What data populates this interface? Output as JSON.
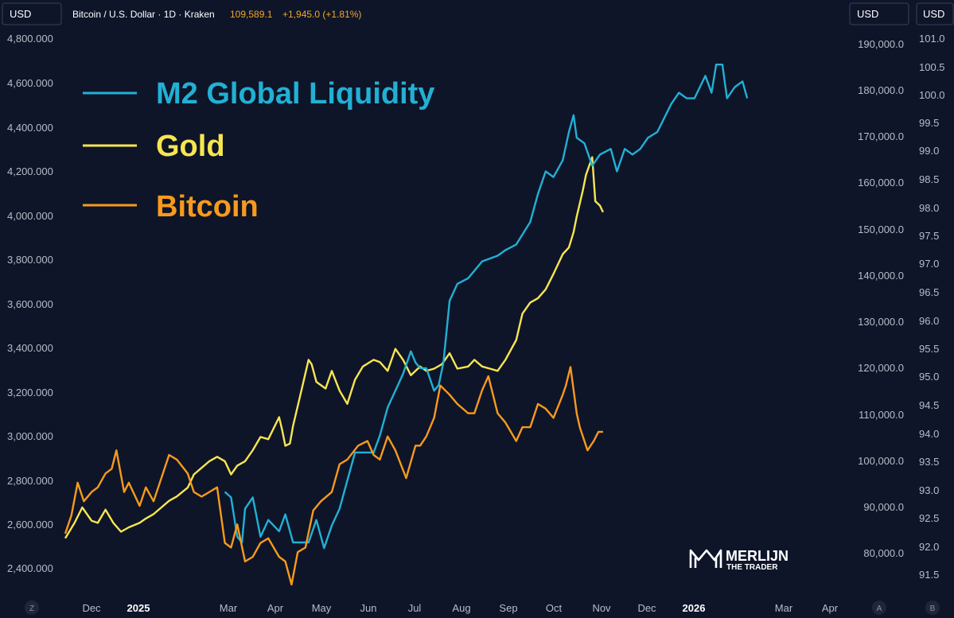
{
  "header": {
    "badge_left": "USD",
    "badge_right_1": "USD",
    "badge_right_2": "USD",
    "symbol_title": "Bitcoin / U.S. Dollar · 1D · Kraken",
    "price": "109,589.1",
    "change": "+1,945.0 (+1.81%)"
  },
  "watermark": {
    "line1": "MERLIJN",
    "line2": "THE TRADER"
  },
  "corner_buttons": {
    "left": "Z",
    "right_1": "A",
    "right_2": "B"
  },
  "colors": {
    "background": "#0e1529",
    "m2": "#22b0d4",
    "gold": "#f8e650",
    "bitcoin": "#f89a1c",
    "header_price": "#f5a623"
  },
  "chart_data": {
    "type": "line",
    "title": "Bitcoin / U.S. Dollar · 1D · Kraken",
    "legend": [
      "M2 Global Liquidity",
      "Gold",
      "Bitcoin"
    ],
    "x_tick_labels": [
      "Dec",
      "2025",
      "Mar",
      "Apr",
      "May",
      "Jun",
      "Jul",
      "Aug",
      "Sep",
      "Oct",
      "Nov",
      "Dec",
      "2026",
      "Mar",
      "Apr"
    ],
    "axes": {
      "gold_axis": {
        "side": "left",
        "ticks": [
          "4,800.000",
          "4,600.000",
          "4,400.000",
          "4,200.000",
          "4,000.000",
          "3,800.000",
          "3,600.000",
          "3,400.000",
          "3,200.000",
          "3,000.000",
          "2,800.000",
          "2,600.000",
          "2,400.000"
        ],
        "range": [
          2360,
          4840
        ]
      },
      "bitcoin_axis": {
        "side": "right-inner",
        "ticks": [
          "190,000.0",
          "180,000.0",
          "170,000.0",
          "160,000.0",
          "150,000.0",
          "140,000.0",
          "130,000.0",
          "120,000.0",
          "110,000.0",
          "100,000.0",
          "90,000.0",
          "80,000.0"
        ],
        "range": [
          77000,
          195000
        ]
      },
      "m2_axis": {
        "side": "right-outer",
        "ticks": [
          "101.0",
          "100.5",
          "100.0",
          "99.5",
          "99.0",
          "98.5",
          "98.0",
          "97.5",
          "97.0",
          "96.5",
          "96.0",
          "95.5",
          "95.0",
          "94.5",
          "94.0",
          "93.5",
          "93.0",
          "92.5",
          "92.0",
          "91.5"
        ],
        "range": [
          91.35,
          101.07
        ]
      }
    },
    "series": [
      {
        "name": "M2 Global Liquidity",
        "axis": "m2_axis",
        "x": [
          "2025-02-25",
          "2025-03-01",
          "2025-03-05",
          "2025-03-08",
          "2025-03-10",
          "2025-03-15",
          "2025-03-20",
          "2025-03-25",
          "2025-04-01",
          "2025-04-05",
          "2025-04-10",
          "2025-04-15",
          "2025-04-20",
          "2025-04-25",
          "2025-04-30",
          "2025-05-05",
          "2025-05-10",
          "2025-05-15",
          "2025-05-20",
          "2025-05-25",
          "2025-06-01",
          "2025-06-05",
          "2025-06-10",
          "2025-06-15",
          "2025-06-20",
          "2025-06-25",
          "2025-06-28",
          "2025-07-01",
          "2025-07-05",
          "2025-07-10",
          "2025-07-13",
          "2025-07-16",
          "2025-07-20",
          "2025-07-25",
          "2025-08-01",
          "2025-08-10",
          "2025-08-20",
          "2025-08-25",
          "2025-09-01",
          "2025-09-10",
          "2025-09-15",
          "2025-09-20",
          "2025-09-25",
          "2025-10-01",
          "2025-10-05",
          "2025-10-08",
          "2025-10-10",
          "2025-10-15",
          "2025-10-20",
          "2025-10-25",
          "2025-11-01",
          "2025-11-05",
          "2025-11-10",
          "2025-11-15",
          "2025-11-20",
          "2025-11-25",
          "2025-12-01",
          "2025-12-10",
          "2025-12-15",
          "2025-12-20",
          "2025-12-25",
          "2026-01-01",
          "2026-01-05",
          "2026-01-08",
          "2026-01-12",
          "2026-01-15",
          "2026-01-20",
          "2026-01-25",
          "2026-01-28"
        ],
        "values": [
          93.0,
          92.9,
          92.2,
          92.1,
          92.7,
          92.9,
          92.2,
          92.5,
          92.3,
          92.6,
          92.1,
          92.1,
          92.1,
          92.5,
          92.0,
          92.4,
          92.7,
          93.2,
          93.7,
          93.7,
          93.7,
          94.0,
          94.5,
          94.8,
          95.1,
          95.5,
          95.3,
          95.2,
          95.2,
          94.8,
          94.9,
          95.3,
          96.4,
          96.7,
          96.8,
          97.1,
          97.2,
          97.3,
          97.4,
          97.8,
          98.3,
          98.7,
          98.6,
          98.9,
          99.4,
          99.7,
          99.3,
          99.2,
          98.8,
          99.0,
          99.1,
          98.7,
          99.1,
          99.0,
          99.1,
          99.3,
          99.4,
          99.9,
          100.1,
          100.0,
          100.0,
          100.4,
          100.1,
          100.6,
          100.6,
          100.0,
          100.2,
          100.3,
          100.0
        ]
      },
      {
        "name": "Gold",
        "axis": "gold_axis",
        "x": [
          "2024-11-14",
          "2024-11-20",
          "2024-11-25",
          "2024-12-01",
          "2024-12-05",
          "2024-12-10",
          "2024-12-15",
          "2024-12-20",
          "2024-12-25",
          "2025-01-01",
          "2025-01-05",
          "2025-01-10",
          "2025-01-15",
          "2025-01-20",
          "2025-01-25",
          "2025-02-01",
          "2025-02-05",
          "2025-02-10",
          "2025-02-15",
          "2025-02-20",
          "2025-02-25",
          "2025-03-01",
          "2025-03-05",
          "2025-03-10",
          "2025-03-15",
          "2025-03-20",
          "2025-03-25",
          "2025-04-01",
          "2025-04-03",
          "2025-04-05",
          "2025-04-08",
          "2025-04-10",
          "2025-04-15",
          "2025-04-20",
          "2025-04-22",
          "2025-04-25",
          "2025-05-01",
          "2025-05-05",
          "2025-05-10",
          "2025-05-15",
          "2025-05-20",
          "2025-05-25",
          "2025-06-01",
          "2025-06-05",
          "2025-06-10",
          "2025-06-15",
          "2025-06-20",
          "2025-06-25",
          "2025-07-01",
          "2025-07-05",
          "2025-07-10",
          "2025-07-15",
          "2025-07-20",
          "2025-07-25",
          "2025-08-01",
          "2025-08-05",
          "2025-08-10",
          "2025-08-15",
          "2025-08-20",
          "2025-08-25",
          "2025-09-01",
          "2025-09-05",
          "2025-09-10",
          "2025-09-15",
          "2025-09-20",
          "2025-09-25",
          "2025-10-01",
          "2025-10-05",
          "2025-10-08",
          "2025-10-10",
          "2025-10-14",
          "2025-10-16",
          "2025-10-20",
          "2025-10-22",
          "2025-10-25",
          "2025-10-27"
        ],
        "values": [
          2570,
          2640,
          2710,
          2650,
          2640,
          2700,
          2640,
          2600,
          2620,
          2640,
          2660,
          2680,
          2710,
          2740,
          2760,
          2800,
          2860,
          2890,
          2920,
          2940,
          2920,
          2860,
          2900,
          2920,
          2970,
          3030,
          3020,
          3120,
          3060,
          2990,
          3000,
          3080,
          3230,
          3380,
          3360,
          3280,
          3250,
          3330,
          3240,
          3180,
          3290,
          3350,
          3380,
          3370,
          3330,
          3430,
          3380,
          3310,
          3350,
          3330,
          3340,
          3360,
          3410,
          3340,
          3350,
          3380,
          3350,
          3340,
          3330,
          3380,
          3470,
          3590,
          3640,
          3660,
          3700,
          3770,
          3860,
          3890,
          3960,
          4030,
          4150,
          4220,
          4300,
          4100,
          4080,
          4050
        ]
      },
      {
        "name": "Bitcoin",
        "axis": "bitcoin_axis",
        "x": [
          "2024-11-14",
          "2024-11-18",
          "2024-11-22",
          "2024-11-26",
          "2024-12-01",
          "2024-12-05",
          "2024-12-10",
          "2024-12-14",
          "2024-12-17",
          "2024-12-22",
          "2024-12-25",
          "2025-01-01",
          "2025-01-05",
          "2025-01-10",
          "2025-01-15",
          "2025-01-20",
          "2025-01-25",
          "2025-02-01",
          "2025-02-05",
          "2025-02-10",
          "2025-02-15",
          "2025-02-20",
          "2025-02-25",
          "2025-03-01",
          "2025-03-05",
          "2025-03-10",
          "2025-03-15",
          "2025-03-20",
          "2025-03-25",
          "2025-04-01",
          "2025-04-05",
          "2025-04-09",
          "2025-04-13",
          "2025-04-18",
          "2025-04-23",
          "2025-04-28",
          "2025-05-05",
          "2025-05-10",
          "2025-05-15",
          "2025-05-22",
          "2025-05-28",
          "2025-06-01",
          "2025-06-05",
          "2025-06-10",
          "2025-06-15",
          "2025-06-22",
          "2025-06-28",
          "2025-07-01",
          "2025-07-05",
          "2025-07-10",
          "2025-07-14",
          "2025-07-20",
          "2025-07-25",
          "2025-08-01",
          "2025-08-05",
          "2025-08-10",
          "2025-08-14",
          "2025-08-20",
          "2025-08-25",
          "2025-09-01",
          "2025-09-05",
          "2025-09-10",
          "2025-09-15",
          "2025-09-20",
          "2025-09-25",
          "2025-10-01",
          "2025-10-03",
          "2025-10-06",
          "2025-10-10",
          "2025-10-12",
          "2025-10-17",
          "2025-10-21",
          "2025-10-24",
          "2025-10-27"
        ],
        "values": [
          88000,
          92000,
          99000,
          95000,
          97000,
          98000,
          101000,
          102000,
          106000,
          97000,
          99000,
          94000,
          98000,
          95000,
          100000,
          105000,
          104000,
          101000,
          97000,
          96000,
          97000,
          98000,
          86000,
          85000,
          90000,
          82000,
          83000,
          86000,
          87000,
          83000,
          82000,
          77000,
          84000,
          85000,
          93000,
          95000,
          97000,
          103000,
          104000,
          107000,
          108000,
          105000,
          104000,
          109000,
          106000,
          100000,
          107000,
          107000,
          109000,
          113000,
          120000,
          118000,
          116000,
          114000,
          114000,
          119000,
          122000,
          114000,
          112000,
          108000,
          111000,
          111000,
          116000,
          115000,
          113000,
          118000,
          120000,
          124000,
          114000,
          111000,
          106000,
          108000,
          110000,
          110000
        ]
      }
    ]
  }
}
